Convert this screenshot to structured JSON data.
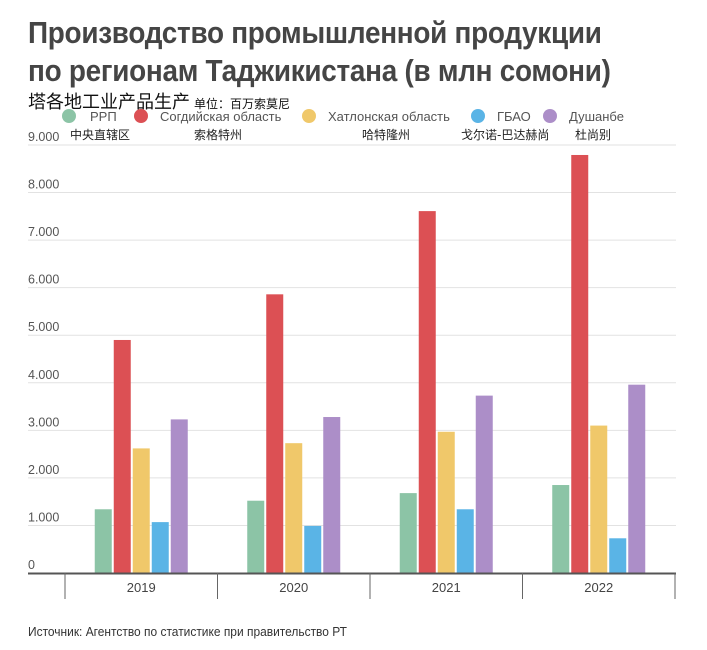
{
  "title_lines": [
    "Производство промышленной продукции",
    "по регионам Таджикистана (в млн сомони)"
  ],
  "subtitle_cn": "塔各地工业产品生产",
  "unit_cn": "单位：百万索莫尼",
  "source": "Источник: Агентство по статистике при правительство РТ",
  "legend": [
    {
      "label": "РРП",
      "label_cn": "中央直辖区",
      "color": "#8cc4a6"
    },
    {
      "label": "Согдийская область",
      "label_cn": "索格特州",
      "color": "#dc5054"
    },
    {
      "label": "Хатлонская область",
      "label_cn": "哈特隆州",
      "color": "#f0c86a"
    },
    {
      "label": "ГБАО",
      "label_cn": "戈尔诺-巴达赫尚",
      "color": "#5ab4e6"
    },
    {
      "label": "Душанбе",
      "label_cn": "杜尚别",
      "color": "#ac8ec8"
    }
  ],
  "chart_data": {
    "type": "bar",
    "title": "Производство промышленной продукции по регионам Таджикистана (в млн сомони)",
    "xlabel": "",
    "ylabel": "",
    "categories": [
      "2019",
      "2020",
      "2021",
      "2022"
    ],
    "ylim": [
      0,
      9000
    ],
    "yticks": [
      0,
      1000,
      2000,
      3000,
      4000,
      5000,
      6000,
      7000,
      8000,
      9000
    ],
    "ytick_labels": [
      "0",
      "1.000",
      "2.000",
      "3.000",
      "4.000",
      "5.000",
      "6.000",
      "7.000",
      "8.000",
      "9.000"
    ],
    "grid": true,
    "legend_position": "top",
    "series": [
      {
        "name": "РРП",
        "values": [
          1340,
          1520,
          1680,
          1850
        ]
      },
      {
        "name": "Согдийская область",
        "values": [
          4900,
          5860,
          7610,
          8790
        ]
      },
      {
        "name": "Хатлонская область",
        "values": [
          2620,
          2730,
          2970,
          3100
        ]
      },
      {
        "name": "ГБАО",
        "values": [
          1070,
          990,
          1340,
          730
        ]
      },
      {
        "name": "Душанбе",
        "values": [
          3230,
          3280,
          3730,
          3960
        ]
      }
    ]
  }
}
